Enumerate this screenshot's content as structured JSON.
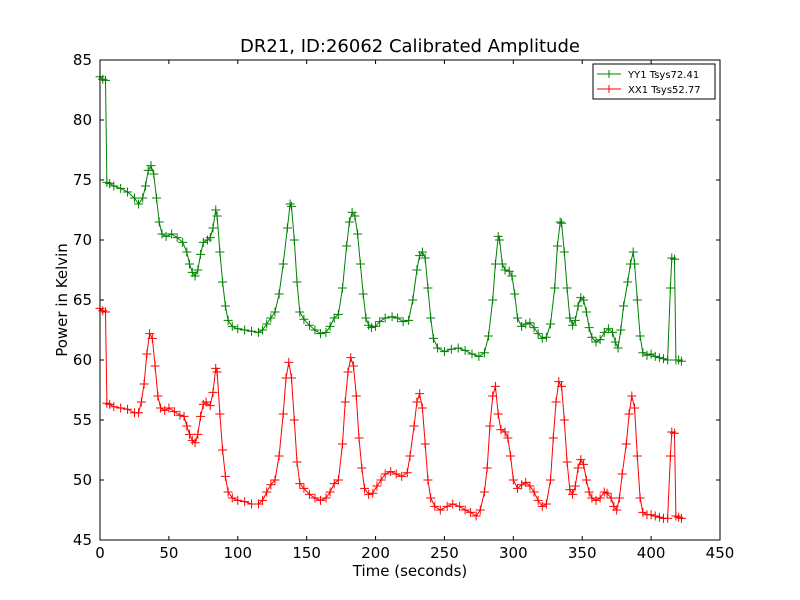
{
  "chart_data": {
    "type": "line",
    "title": "DR21, ID:26062 Calibrated Amplitude",
    "xlabel": "Time (seconds)",
    "ylabel": "Power in Kelvin",
    "xlim": [
      0,
      450
    ],
    "ylim": [
      45,
      85
    ],
    "xticks": [
      0,
      50,
      100,
      150,
      200,
      250,
      300,
      350,
      400,
      450
    ],
    "yticks": [
      45,
      50,
      55,
      60,
      65,
      70,
      75,
      80,
      85
    ],
    "grid": false,
    "legend_position": "top-right",
    "marker": "+",
    "series": [
      {
        "name": "YY1 Tsys72.41",
        "color": "#008000",
        "points": [
          [
            0,
            83.6
          ],
          [
            2,
            83.4
          ],
          [
            4,
            83.3
          ],
          [
            5,
            74.8
          ],
          [
            7,
            74.7
          ],
          [
            10,
            74.5
          ],
          [
            15,
            74.3
          ],
          [
            20,
            74.0
          ],
          [
            25,
            73.5
          ],
          [
            28,
            73.0
          ],
          [
            31,
            73.5
          ],
          [
            33,
            74.5
          ],
          [
            35,
            75.8
          ],
          [
            37,
            76.2
          ],
          [
            39,
            75.5
          ],
          [
            41,
            73.5
          ],
          [
            43,
            71.5
          ],
          [
            45,
            70.5
          ],
          [
            48,
            70.3
          ],
          [
            52,
            70.5
          ],
          [
            56,
            70.2
          ],
          [
            60,
            69.8
          ],
          [
            63,
            69.0
          ],
          [
            65,
            68.0
          ],
          [
            67,
            67.3
          ],
          [
            69,
            67.0
          ],
          [
            71,
            67.5
          ],
          [
            73,
            68.8
          ],
          [
            75,
            69.8
          ],
          [
            78,
            70.0
          ],
          [
            80,
            70.2
          ],
          [
            82,
            71.0
          ],
          [
            84,
            72.5
          ],
          [
            85,
            72.0
          ],
          [
            87,
            69.0
          ],
          [
            89,
            66.5
          ],
          [
            91,
            64.5
          ],
          [
            93,
            63.3
          ],
          [
            96,
            62.8
          ],
          [
            100,
            62.6
          ],
          [
            105,
            62.5
          ],
          [
            110,
            62.4
          ],
          [
            115,
            62.3
          ],
          [
            118,
            62.5
          ],
          [
            121,
            63.0
          ],
          [
            124,
            63.5
          ],
          [
            127,
            64.0
          ],
          [
            130,
            65.5
          ],
          [
            133,
            68.0
          ],
          [
            136,
            71.0
          ],
          [
            138,
            73.0
          ],
          [
            139,
            72.8
          ],
          [
            141,
            70.0
          ],
          [
            143,
            66.5
          ],
          [
            145,
            64.0
          ],
          [
            148,
            63.4
          ],
          [
            152,
            62.9
          ],
          [
            156,
            62.5
          ],
          [
            160,
            62.2
          ],
          [
            164,
            62.3
          ],
          [
            167,
            62.8
          ],
          [
            170,
            63.5
          ],
          [
            173,
            63.8
          ],
          [
            176,
            66.0
          ],
          [
            179,
            69.5
          ],
          [
            181,
            71.5
          ],
          [
            183,
            72.3
          ],
          [
            185,
            72.0
          ],
          [
            187,
            70.5
          ],
          [
            189,
            68.0
          ],
          [
            191,
            65.5
          ],
          [
            193,
            63.5
          ],
          [
            195,
            62.9
          ],
          [
            197,
            62.7
          ],
          [
            200,
            62.8
          ],
          [
            203,
            63.2
          ],
          [
            207,
            63.5
          ],
          [
            212,
            63.6
          ],
          [
            216,
            63.5
          ],
          [
            220,
            63.2
          ],
          [
            224,
            63.3
          ],
          [
            227,
            65.0
          ],
          [
            230,
            67.5
          ],
          [
            232,
            68.7
          ],
          [
            234,
            69.0
          ],
          [
            236,
            68.5
          ],
          [
            238,
            66.0
          ],
          [
            240,
            63.5
          ],
          [
            242,
            61.8
          ],
          [
            245,
            61.0
          ],
          [
            250,
            60.7
          ],
          [
            255,
            60.9
          ],
          [
            260,
            61.0
          ],
          [
            265,
            60.8
          ],
          [
            270,
            60.5
          ],
          [
            275,
            60.3
          ],
          [
            279,
            60.6
          ],
          [
            282,
            62.0
          ],
          [
            285,
            65.0
          ],
          [
            287,
            68.0
          ],
          [
            289,
            70.3
          ],
          [
            290,
            70.0
          ],
          [
            292,
            68.0
          ],
          [
            294,
            67.5
          ],
          [
            297,
            67.4
          ],
          [
            299,
            67.0
          ],
          [
            301,
            65.5
          ],
          [
            303,
            63.5
          ],
          [
            306,
            62.8
          ],
          [
            309,
            63.0
          ],
          [
            312,
            63.1
          ],
          [
            315,
            62.7
          ],
          [
            318,
            62.2
          ],
          [
            321,
            61.8
          ],
          [
            324,
            61.9
          ],
          [
            327,
            63.0
          ],
          [
            330,
            66.0
          ],
          [
            332,
            69.5
          ],
          [
            334,
            71.5
          ],
          [
            335,
            71.4
          ],
          [
            337,
            69.0
          ],
          [
            339,
            66.0
          ],
          [
            341,
            63.5
          ],
          [
            343,
            62.9
          ],
          [
            345,
            63.3
          ],
          [
            347,
            64.5
          ],
          [
            349,
            65.2
          ],
          [
            351,
            65.0
          ],
          [
            353,
            64.0
          ],
          [
            355,
            62.7
          ],
          [
            357,
            61.9
          ],
          [
            360,
            61.5
          ],
          [
            363,
            61.7
          ],
          [
            366,
            62.3
          ],
          [
            369,
            62.6
          ],
          [
            372,
            62.3
          ],
          [
            374,
            61.5
          ],
          [
            376,
            61.0
          ],
          [
            378,
            62.5
          ],
          [
            380,
            64.5
          ],
          [
            383,
            66.5
          ],
          [
            385,
            68.0
          ],
          [
            387,
            69.0
          ],
          [
            388,
            68.0
          ],
          [
            390,
            65.0
          ],
          [
            392,
            62.0
          ],
          [
            394,
            60.6
          ],
          [
            397,
            60.4
          ],
          [
            400,
            60.5
          ],
          [
            403,
            60.3
          ],
          [
            406,
            60.2
          ],
          [
            409,
            60.1
          ],
          [
            412,
            60.0
          ],
          [
            414,
            66.0
          ],
          [
            415,
            68.5
          ],
          [
            417,
            68.4
          ],
          [
            418,
            60.0
          ],
          [
            420,
            60.0
          ],
          [
            422,
            59.9
          ]
        ]
      },
      {
        "name": "XX1 Tsys52.77",
        "color": "#ff0000",
        "points": [
          [
            0,
            64.3
          ],
          [
            2,
            64.1
          ],
          [
            4,
            64.0
          ],
          [
            5,
            56.4
          ],
          [
            7,
            56.3
          ],
          [
            10,
            56.1
          ],
          [
            15,
            56.0
          ],
          [
            20,
            55.9
          ],
          [
            25,
            55.6
          ],
          [
            28,
            55.6
          ],
          [
            30,
            56.5
          ],
          [
            32,
            58.0
          ],
          [
            34,
            60.5
          ],
          [
            36,
            62.2
          ],
          [
            38,
            61.8
          ],
          [
            40,
            59.5
          ],
          [
            42,
            57.0
          ],
          [
            44,
            56.0
          ],
          [
            47,
            55.8
          ],
          [
            50,
            56.0
          ],
          [
            54,
            55.7
          ],
          [
            58,
            55.4
          ],
          [
            61,
            55.3
          ],
          [
            63,
            54.5
          ],
          [
            65,
            53.8
          ],
          [
            67,
            53.3
          ],
          [
            69,
            53.1
          ],
          [
            71,
            53.8
          ],
          [
            73,
            55.3
          ],
          [
            75,
            56.3
          ],
          [
            77,
            56.5
          ],
          [
            80,
            56.2
          ],
          [
            82,
            57.3
          ],
          [
            84,
            59.3
          ],
          [
            85,
            59.0
          ],
          [
            87,
            55.5
          ],
          [
            89,
            52.5
          ],
          [
            91,
            50.3
          ],
          [
            93,
            49.0
          ],
          [
            96,
            48.5
          ],
          [
            100,
            48.3
          ],
          [
            105,
            48.2
          ],
          [
            110,
            48.0
          ],
          [
            115,
            48.0
          ],
          [
            118,
            48.3
          ],
          [
            121,
            49.0
          ],
          [
            124,
            49.6
          ],
          [
            127,
            50.0
          ],
          [
            130,
            52.0
          ],
          [
            133,
            55.5
          ],
          [
            135,
            58.5
          ],
          [
            137,
            59.8
          ],
          [
            139,
            58.5
          ],
          [
            141,
            55.0
          ],
          [
            143,
            51.5
          ],
          [
            145,
            49.7
          ],
          [
            148,
            49.3
          ],
          [
            152,
            48.8
          ],
          [
            156,
            48.5
          ],
          [
            160,
            48.3
          ],
          [
            164,
            48.5
          ],
          [
            167,
            49.0
          ],
          [
            170,
            49.7
          ],
          [
            173,
            50.0
          ],
          [
            176,
            53.0
          ],
          [
            178,
            56.5
          ],
          [
            180,
            59.0
          ],
          [
            182,
            60.2
          ],
          [
            184,
            59.5
          ],
          [
            186,
            57.0
          ],
          [
            188,
            53.5
          ],
          [
            190,
            51.0
          ],
          [
            192,
            49.3
          ],
          [
            195,
            48.8
          ],
          [
            198,
            48.9
          ],
          [
            201,
            49.5
          ],
          [
            204,
            50.0
          ],
          [
            207,
            50.5
          ],
          [
            211,
            50.7
          ],
          [
            215,
            50.5
          ],
          [
            219,
            50.3
          ],
          [
            223,
            50.6
          ],
          [
            225,
            52.0
          ],
          [
            228,
            54.5
          ],
          [
            230,
            56.5
          ],
          [
            232,
            57.2
          ],
          [
            234,
            56.0
          ],
          [
            236,
            53.0
          ],
          [
            238,
            50.0
          ],
          [
            240,
            48.5
          ],
          [
            243,
            47.8
          ],
          [
            247,
            47.5
          ],
          [
            252,
            47.8
          ],
          [
            256,
            48.0
          ],
          [
            261,
            47.8
          ],
          [
            265,
            47.5
          ],
          [
            269,
            47.3
          ],
          [
            273,
            47.0
          ],
          [
            276,
            47.5
          ],
          [
            279,
            49.0
          ],
          [
            281,
            51.0
          ],
          [
            283,
            54.5
          ],
          [
            285,
            57.0
          ],
          [
            287,
            57.8
          ],
          [
            289,
            55.5
          ],
          [
            291,
            54.2
          ],
          [
            294,
            54.0
          ],
          [
            296,
            53.5
          ],
          [
            298,
            52.0
          ],
          [
            300,
            50.0
          ],
          [
            303,
            49.3
          ],
          [
            306,
            49.6
          ],
          [
            309,
            49.8
          ],
          [
            312,
            49.5
          ],
          [
            315,
            49.0
          ],
          [
            318,
            48.3
          ],
          [
            321,
            47.8
          ],
          [
            324,
            48.0
          ],
          [
            327,
            50.0
          ],
          [
            329,
            53.5
          ],
          [
            331,
            56.5
          ],
          [
            333,
            58.2
          ],
          [
            335,
            57.8
          ],
          [
            337,
            55.0
          ],
          [
            339,
            51.5
          ],
          [
            341,
            49.2
          ],
          [
            343,
            48.8
          ],
          [
            345,
            49.5
          ],
          [
            347,
            51.0
          ],
          [
            349,
            51.7
          ],
          [
            351,
            51.3
          ],
          [
            353,
            50.0
          ],
          [
            355,
            49.0
          ],
          [
            357,
            48.5
          ],
          [
            360,
            48.3
          ],
          [
            363,
            48.5
          ],
          [
            366,
            49.0
          ],
          [
            368,
            48.9
          ],
          [
            371,
            48.5
          ],
          [
            373,
            47.8
          ],
          [
            375,
            47.5
          ],
          [
            377,
            48.5
          ],
          [
            379,
            50.5
          ],
          [
            382,
            53.0
          ],
          [
            384,
            55.5
          ],
          [
            386,
            57.0
          ],
          [
            388,
            56.0
          ],
          [
            390,
            52.0
          ],
          [
            392,
            48.5
          ],
          [
            394,
            47.3
          ],
          [
            397,
            47.1
          ],
          [
            400,
            47.1
          ],
          [
            403,
            47.0
          ],
          [
            406,
            46.9
          ],
          [
            409,
            46.8
          ],
          [
            412,
            46.8
          ],
          [
            414,
            52.0
          ],
          [
            415,
            54.0
          ],
          [
            417,
            53.9
          ],
          [
            418,
            47.0
          ],
          [
            420,
            46.9
          ],
          [
            422,
            46.8
          ]
        ]
      }
    ]
  }
}
